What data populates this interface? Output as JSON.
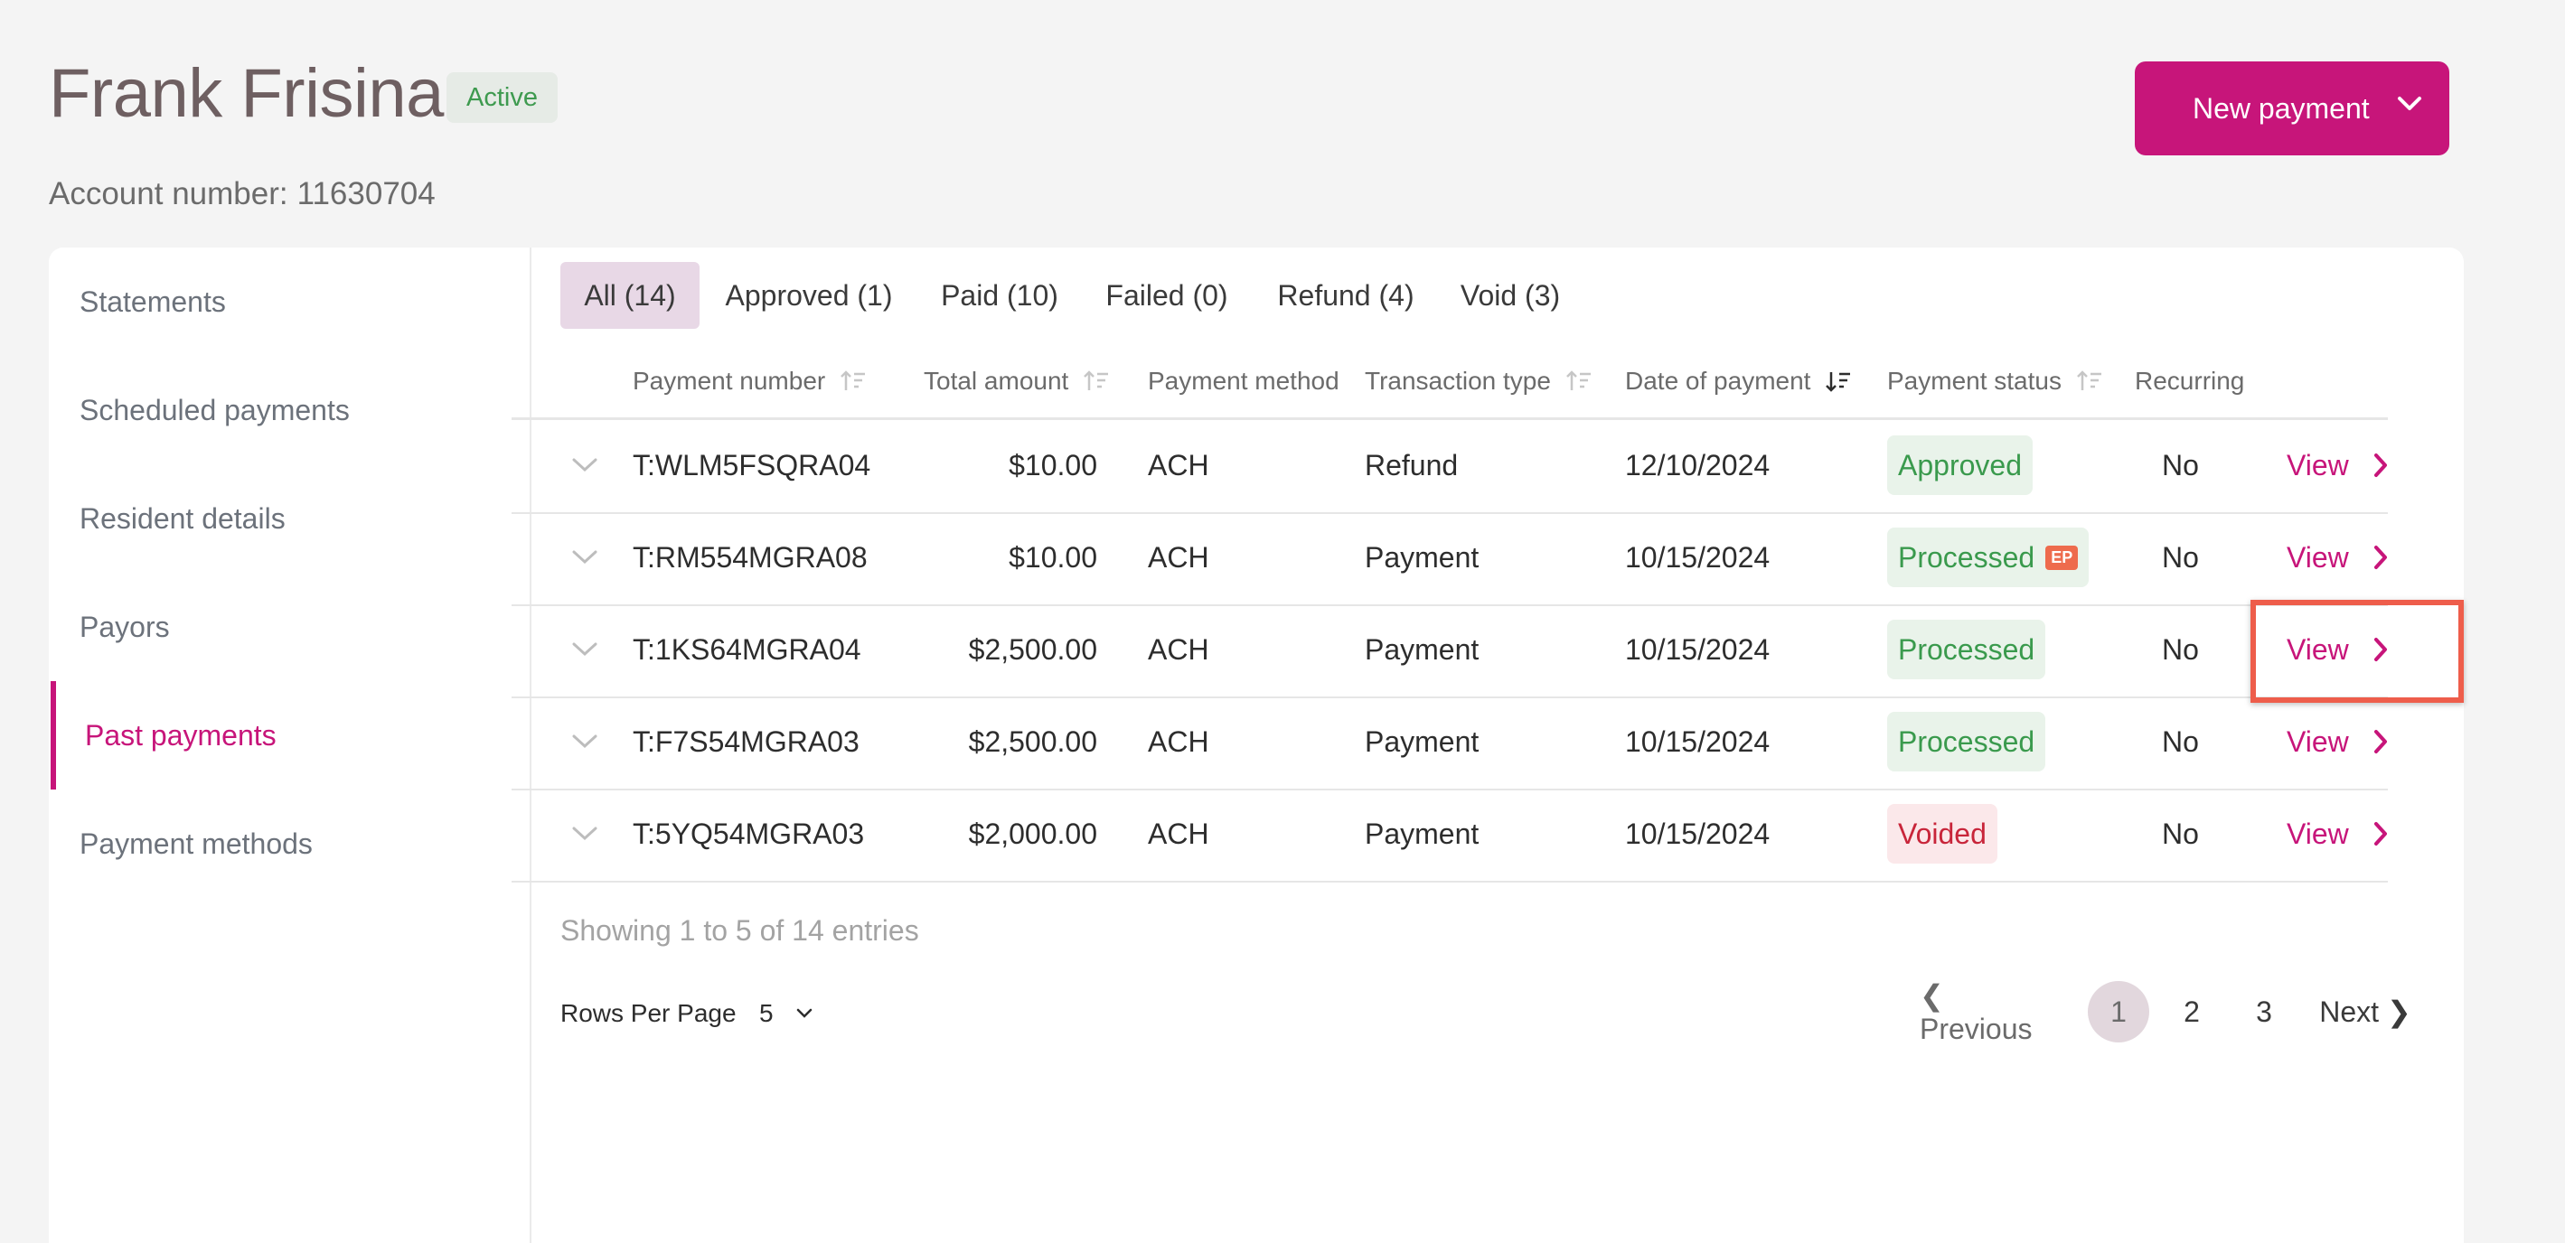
{
  "header": {
    "name": "Frank Frisina",
    "status": "Active",
    "account_label": "Account number:",
    "account_number": "11630704",
    "new_payment_label": "New payment"
  },
  "sidebar": {
    "items": [
      {
        "label": "Statements"
      },
      {
        "label": "Scheduled payments"
      },
      {
        "label": "Resident details"
      },
      {
        "label": "Payors"
      },
      {
        "label": "Past payments",
        "active": true
      },
      {
        "label": "Payment methods"
      }
    ]
  },
  "tabs": [
    {
      "label": "All (14)",
      "active": true
    },
    {
      "label": "Approved (1)"
    },
    {
      "label": "Paid (10)"
    },
    {
      "label": "Failed (0)"
    },
    {
      "label": "Refund (4)"
    },
    {
      "label": "Void (3)"
    }
  ],
  "table": {
    "columns": [
      "Payment number",
      "Total amount",
      "Payment method",
      "Transaction type",
      "Date of payment",
      "Payment status",
      "Recurring"
    ],
    "rows": [
      {
        "number": "T:WLM5FSQRA04",
        "amount": "$10.00",
        "method": "ACH",
        "type": "Refund",
        "date": "12/10/2024",
        "status": "Approved",
        "ep": "",
        "recurring": "No",
        "action": "View"
      },
      {
        "number": "T:RM554MGRA08",
        "amount": "$10.00",
        "method": "ACH",
        "type": "Payment",
        "date": "10/15/2024",
        "status": "Processed",
        "ep": "EP",
        "recurring": "No",
        "action": "View"
      },
      {
        "number": "T:1KS64MGRA04",
        "amount": "$2,500.00",
        "method": "ACH",
        "type": "Payment",
        "date": "10/15/2024",
        "status": "Processed",
        "ep": "",
        "recurring": "No",
        "action": "View"
      },
      {
        "number": "T:F7S54MGRA03",
        "amount": "$2,500.00",
        "method": "ACH",
        "type": "Payment",
        "date": "10/15/2024",
        "status": "Processed",
        "ep": "",
        "recurring": "No",
        "action": "View"
      },
      {
        "number": "T:5YQ54MGRA03",
        "amount": "$2,000.00",
        "method": "ACH",
        "type": "Payment",
        "date": "10/15/2024",
        "status": "Voided",
        "ep": "",
        "recurring": "No",
        "action": "View"
      }
    ]
  },
  "footer": {
    "showing": "Showing 1 to 5 of 14 entries",
    "rows_per_page_label": "Rows Per Page",
    "rows_per_page_value": "5"
  },
  "pagination": {
    "previous": "❮ Previous",
    "pages": [
      "1",
      "2",
      "3"
    ],
    "current": "1",
    "next": "Next ❯"
  },
  "colors": {
    "accent": "#c7157a",
    "success": "#3a9a4d",
    "danger": "#c8253a",
    "highlight": "#ee5d4b"
  }
}
